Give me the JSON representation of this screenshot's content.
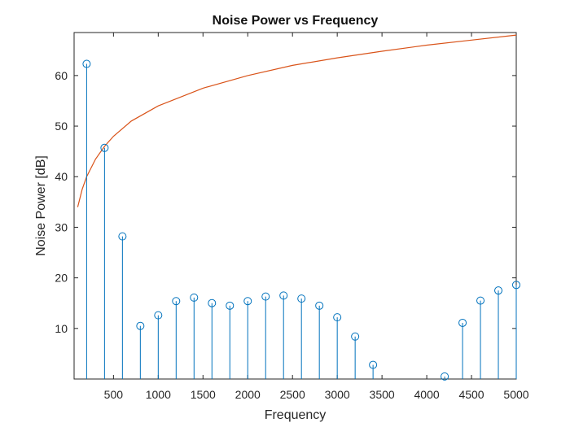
{
  "chart_data": {
    "type": "stem",
    "title": "Noise Power vs Frequency",
    "xlabel": "Frequency",
    "ylabel": "Noise Power [dB]",
    "xlim": [
      60,
      5000
    ],
    "ylim": [
      0,
      68.5
    ],
    "xticks": [
      "500",
      "1000",
      "1500",
      "2000",
      "2500",
      "3000",
      "3500",
      "4000",
      "4500",
      "5000"
    ],
    "yticks": [
      "10",
      "20",
      "30",
      "40",
      "50",
      "60"
    ],
    "grid": false,
    "box": true,
    "series": [
      {
        "kind": "stem",
        "color": "#0072BD",
        "marker": "circle",
        "x": [
          200,
          400,
          600,
          800,
          1000,
          1200,
          1400,
          1600,
          1800,
          2000,
          2200,
          2400,
          2600,
          2800,
          3000,
          3200,
          3400,
          3600,
          3800,
          4000,
          4200,
          4400,
          4600,
          4800,
          5000
        ],
        "y": [
          62.3,
          45.7,
          28.2,
          10.5,
          12.6,
          15.4,
          16.1,
          15.0,
          14.5,
          15.4,
          16.3,
          16.5,
          15.9,
          14.5,
          12.2,
          8.4,
          2.8,
          null,
          null,
          null,
          0.5,
          11.1,
          15.5,
          17.5,
          18.6
        ]
      },
      {
        "kind": "line",
        "color": "#D95319",
        "x": [
          100,
          150,
          200,
          300,
          400,
          500,
          700,
          1000,
          1500,
          2000,
          2500,
          3000,
          3500,
          4000,
          4500,
          5000
        ],
        "y": [
          34.0,
          37.5,
          40.0,
          43.5,
          46.0,
          48.0,
          51.0,
          54.0,
          57.5,
          60.0,
          62.0,
          63.5,
          64.8,
          66.0,
          67.0,
          68.0
        ]
      }
    ]
  }
}
